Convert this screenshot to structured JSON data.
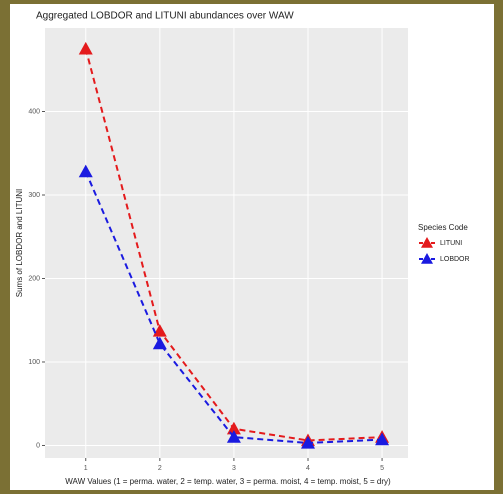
{
  "chart_data": {
    "type": "line",
    "title": "Aggregated LOBDOR and LITUNI abundances over WAW",
    "x_label": "WAW Values (1 = perma. water, 2 = temp. water, 3 = perma. moist, 4 = temp. moist, 5 = dry)",
    "y_label": "Sums of LOBDOR and LITUNI",
    "legend_title": "Species Code",
    "x": [
      1,
      2,
      3,
      4,
      5
    ],
    "series": [
      {
        "name": "LITUNI",
        "color": "#e41a1c",
        "values": [
          475,
          137,
          20,
          6,
          10
        ]
      },
      {
        "name": "LOBDOR",
        "color": "#1a1ae0",
        "values": [
          328,
          122,
          10,
          3,
          7
        ]
      }
    ],
    "xlim": [
      0.45,
      5.35
    ],
    "xticks": [
      1,
      2,
      3,
      4,
      5
    ],
    "ylim": [
      -15,
      500
    ],
    "yticks": [
      0,
      100,
      200,
      300,
      400
    ],
    "grid": true,
    "legend": "right",
    "marker": "triangle",
    "line_style": "dashed"
  }
}
